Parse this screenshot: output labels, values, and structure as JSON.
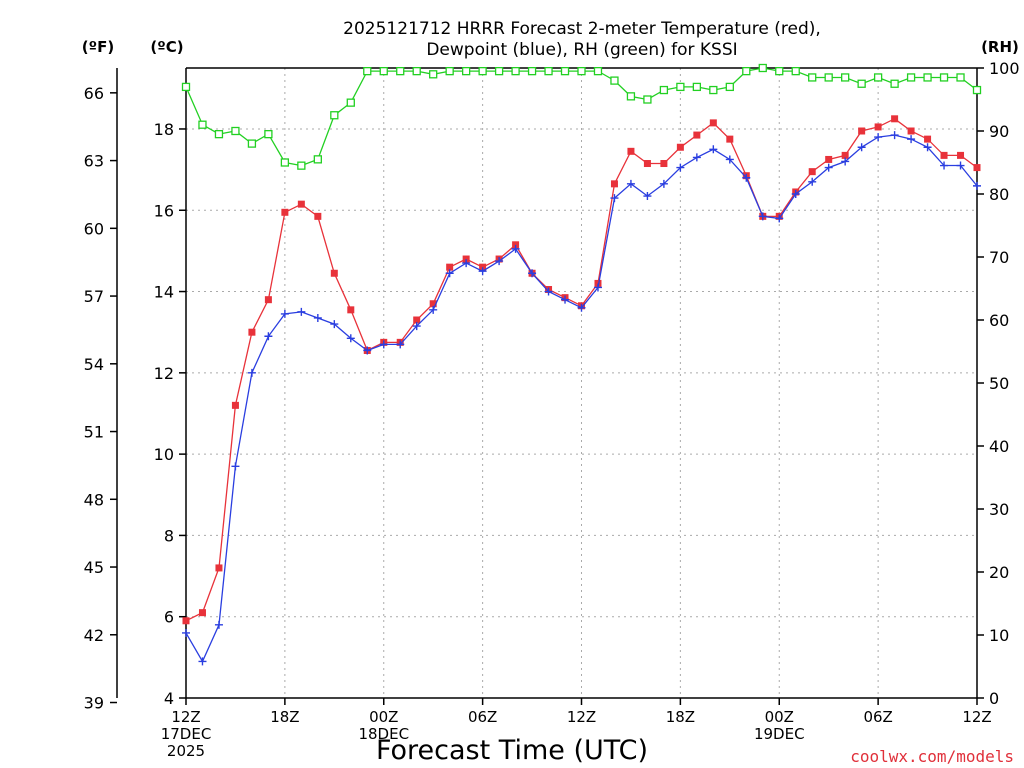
{
  "chart_data": {
    "type": "line",
    "title_line1": "2025121712 HRRR Forecast 2-meter Temperature (red),",
    "title_line2": "Dewpoint (blue), RH (green) for KSSI",
    "xlabel": "Forecast Time (UTC)",
    "left_outer_unit": "(ºF)",
    "left_inner_unit": "(ºC)",
    "right_unit": "(RH)",
    "credit": "coolwx.com/models",
    "colors": {
      "temperature": "#e8323a",
      "dewpoint": "#2a3ee0",
      "rh": "#22d022"
    },
    "x_range_hours": [
      0,
      48
    ],
    "ylim_c": [
      4,
      19.5
    ],
    "ylim_rh": [
      0,
      100
    ],
    "x_ticks": [
      {
        "h": 0,
        "lines": [
          "12Z",
          "17DEC",
          "2025"
        ]
      },
      {
        "h": 6,
        "lines": [
          "18Z"
        ]
      },
      {
        "h": 12,
        "lines": [
          "00Z",
          "18DEC"
        ]
      },
      {
        "h": 18,
        "lines": [
          "06Z"
        ]
      },
      {
        "h": 24,
        "lines": [
          "12Z"
        ]
      },
      {
        "h": 30,
        "lines": [
          "18Z"
        ]
      },
      {
        "h": 36,
        "lines": [
          "00Z",
          "19DEC"
        ]
      },
      {
        "h": 42,
        "lines": [
          "06Z"
        ]
      },
      {
        "h": 48,
        "lines": [
          "12Z"
        ]
      }
    ],
    "celsius_ticks": [
      4,
      6,
      8,
      10,
      12,
      14,
      16,
      18
    ],
    "fahrenheit_ticks": [
      39,
      42,
      45,
      48,
      51,
      54,
      57,
      60,
      63,
      66
    ],
    "rh_ticks": [
      0,
      10,
      20,
      30,
      40,
      50,
      60,
      70,
      80,
      90,
      100
    ],
    "hours": [
      0,
      1,
      2,
      3,
      4,
      5,
      6,
      7,
      8,
      9,
      10,
      11,
      12,
      13,
      14,
      15,
      16,
      17,
      18,
      19,
      20,
      21,
      22,
      23,
      24,
      25,
      26,
      27,
      28,
      29,
      30,
      31,
      32,
      33,
      34,
      35,
      36,
      37,
      38,
      39,
      40,
      41,
      42,
      43,
      44,
      45,
      46,
      47,
      48
    ],
    "series": [
      {
        "name": "Temperature",
        "marker": "filled-square",
        "values": [
          5.9,
          6.1,
          7.2,
          11.2,
          13.0,
          13.8,
          15.95,
          16.15,
          15.85,
          14.45,
          13.55,
          12.55,
          12.75,
          12.75,
          13.3,
          13.7,
          14.6,
          14.8,
          14.6,
          14.8,
          15.15,
          14.45,
          14.05,
          13.85,
          13.65,
          14.2,
          16.65,
          17.45,
          17.15,
          17.15,
          17.55,
          17.85,
          18.15,
          17.75,
          16.85,
          15.85,
          15.85,
          16.45,
          16.95,
          17.25,
          17.35,
          17.95,
          18.05,
          18.25,
          17.95,
          17.75,
          17.35,
          17.35,
          17.05
        ]
      },
      {
        "name": "Dewpoint",
        "marker": "plus",
        "values": [
          5.6,
          4.9,
          5.8,
          9.7,
          12.0,
          12.9,
          13.45,
          13.5,
          13.35,
          13.2,
          12.85,
          12.55,
          12.7,
          12.7,
          13.15,
          13.55,
          14.45,
          14.7,
          14.5,
          14.75,
          15.05,
          14.45,
          14.0,
          13.8,
          13.6,
          14.1,
          16.3,
          16.65,
          16.35,
          16.65,
          17.05,
          17.3,
          17.5,
          17.25,
          16.8,
          15.85,
          15.8,
          16.4,
          16.7,
          17.05,
          17.2,
          17.55,
          17.8,
          17.85,
          17.75,
          17.55,
          17.1,
          17.1,
          16.6
        ]
      },
      {
        "name": "RH",
        "marker": "open-square",
        "values": [
          97,
          91,
          89.5,
          90,
          88,
          89.5,
          85,
          84.5,
          85.5,
          92.5,
          94.5,
          99.5,
          99.5,
          99.5,
          99.5,
          99,
          99.5,
          99.5,
          99.5,
          99.5,
          99.5,
          99.5,
          99.5,
          99.5,
          99.5,
          99.5,
          98,
          95.5,
          95,
          96.5,
          97,
          97,
          96.5,
          97,
          99.5,
          100,
          99.5,
          99.5,
          98.5,
          98.5,
          98.5,
          97.5,
          98.5,
          97.5,
          98.5,
          98.5,
          98.5,
          98.5,
          96.5
        ]
      }
    ]
  }
}
